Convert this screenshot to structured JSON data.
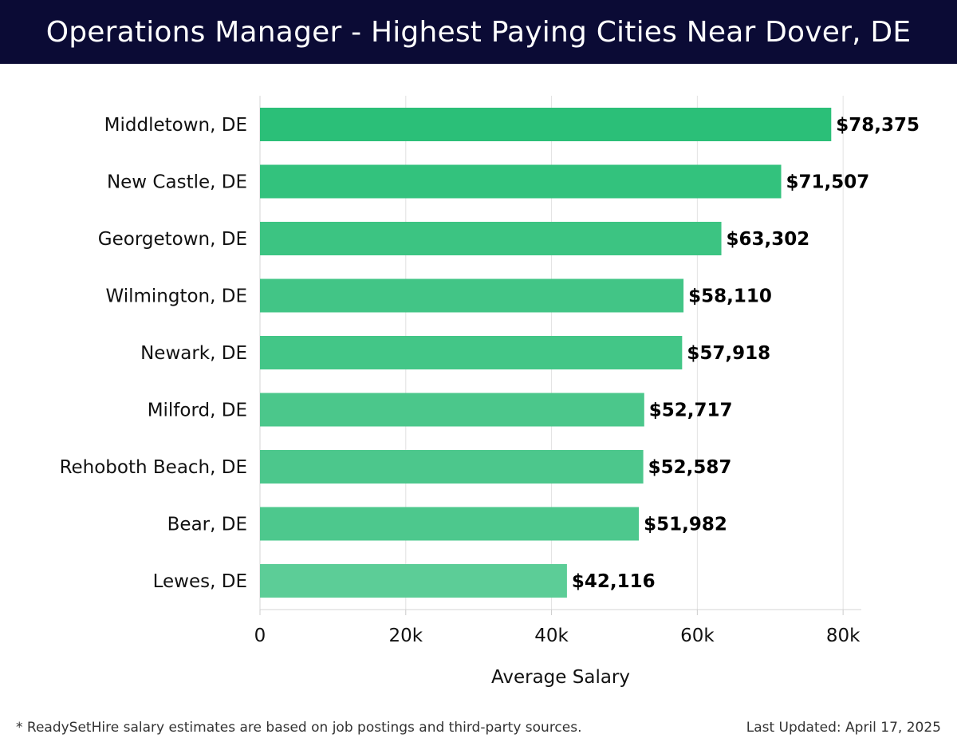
{
  "header": {
    "title": "Operations Manager - Highest Paying Cities Near Dover, DE"
  },
  "chart_data": {
    "type": "bar",
    "orientation": "horizontal",
    "categories": [
      "Middletown, DE",
      "New Castle, DE",
      "Georgetown, DE",
      "Wilmington, DE",
      "Newark, DE",
      "Milford, DE",
      "Rehoboth Beach, DE",
      "Bear, DE",
      "Lewes, DE"
    ],
    "values": [
      78375,
      71507,
      63302,
      58110,
      57918,
      52717,
      52587,
      51982,
      42116
    ],
    "value_labels": [
      "$78,375",
      "$71,507",
      "$63,302",
      "$58,110",
      "$57,918",
      "$52,717",
      "$52,587",
      "$51,982",
      "$42,116"
    ],
    "bar_colors": [
      "#2bbf78",
      "#33c27d",
      "#3cc482",
      "#42c586",
      "#43c687",
      "#4bc78b",
      "#4cc78c",
      "#4dc88d",
      "#5ccd97"
    ],
    "xlabel": "Average Salary",
    "ylabel": "",
    "xlim": [
      0,
      82500
    ],
    "xticks": [
      0,
      20000,
      40000,
      60000,
      80000
    ],
    "xtick_labels": [
      "0",
      "20k",
      "40k",
      "60k",
      "80k"
    ],
    "grid": "vertical",
    "title": ""
  },
  "footer": {
    "note": "* ReadySetHire salary estimates are based on job postings and third-party sources.",
    "updated": "Last Updated: April 17, 2025"
  }
}
